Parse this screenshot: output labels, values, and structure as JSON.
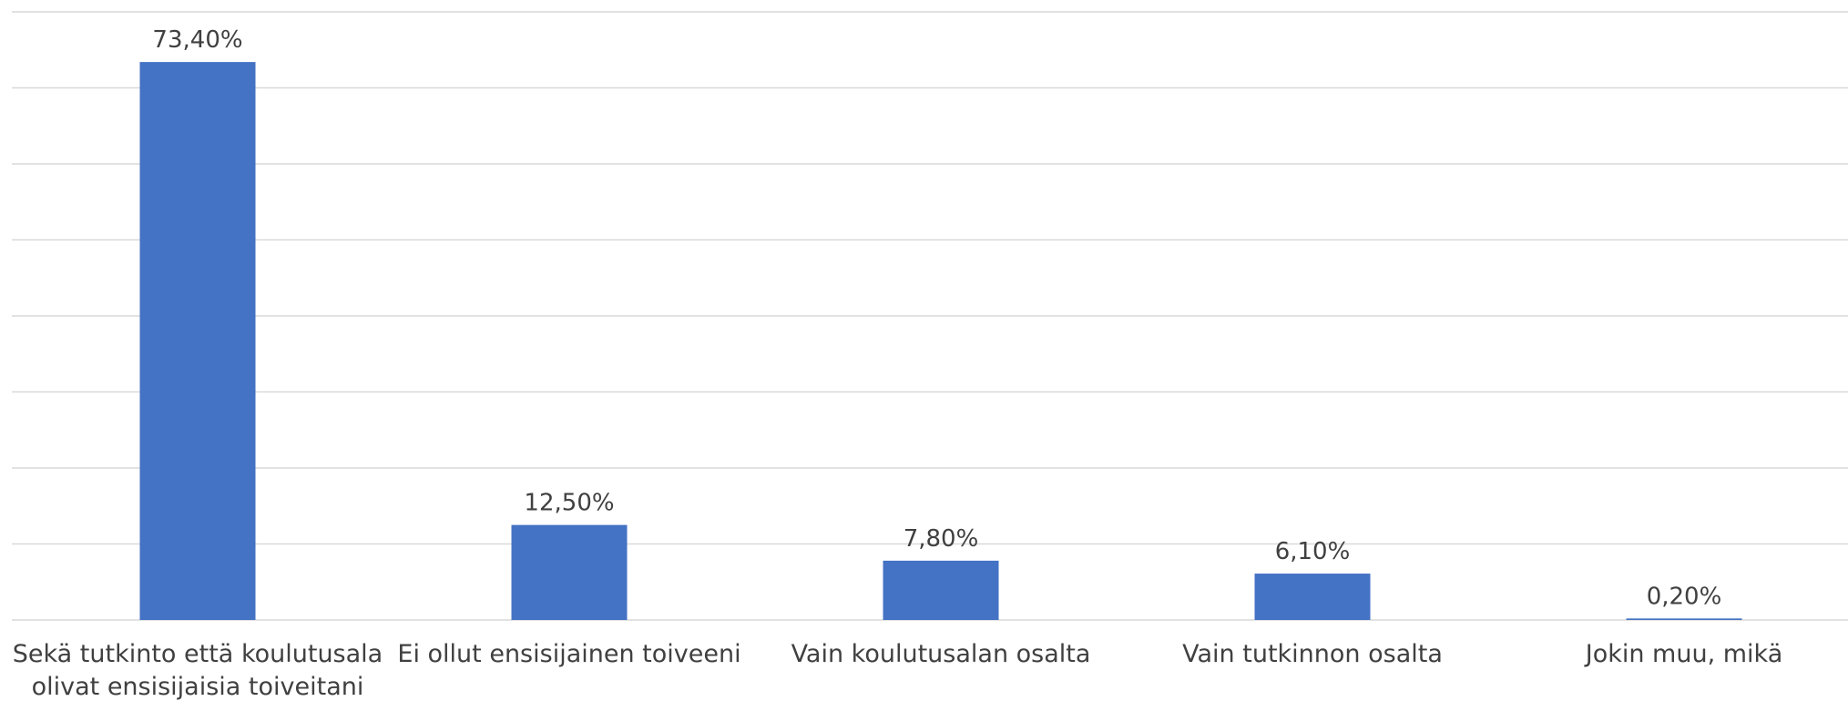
{
  "chart_data": {
    "type": "bar",
    "categories": [
      "Sekä tutkinto että koulutusala olivat ensisijaisia toiveitani",
      "Ei ollut ensisijainen toiveeni",
      "Vain koulutusalan osalta",
      "Vain tutkinnon osalta",
      "Jokin muu, mikä"
    ],
    "values": [
      73.4,
      12.5,
      7.8,
      6.1,
      0.2
    ],
    "value_labels": [
      "73,40%",
      "12,50%",
      "7,80%",
      "6,10%",
      "0,20%"
    ],
    "color": "#4472c4",
    "ylim": [
      0,
      80
    ],
    "yticks": [
      0,
      10,
      20,
      30,
      40,
      50,
      60,
      70,
      80
    ],
    "grid": true
  }
}
